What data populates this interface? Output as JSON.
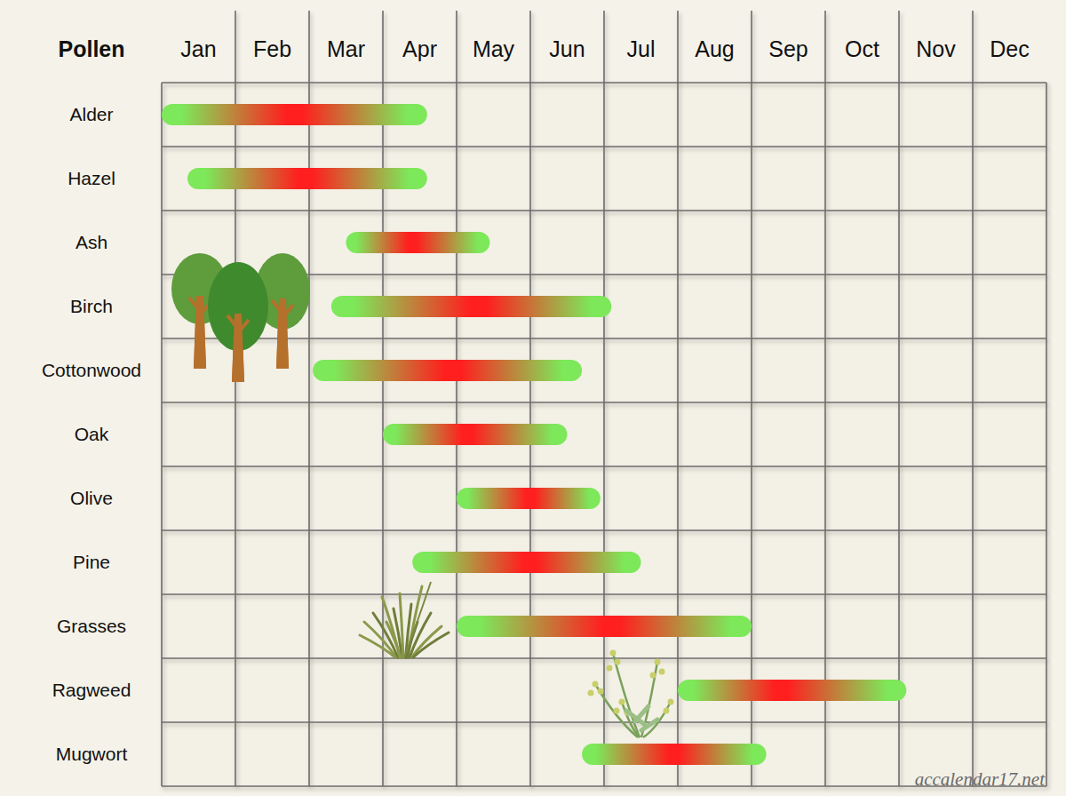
{
  "chart_data": {
    "type": "gantt",
    "orientation": "horizontal",
    "ylabel": "Pollen",
    "source": "accalendar17.net",
    "categories": [
      "Alder",
      "Hazel",
      "Ash",
      "Birch",
      "Cottonwood",
      "Oak",
      "Olive",
      "Pine",
      "Grasses",
      "Ragweed",
      "Mugwort"
    ],
    "start": [
      0,
      0.35,
      2.5,
      2.3,
      2.05,
      3.0,
      4.0,
      3.4,
      4.0,
      7.0,
      5.7
    ],
    "peak": [
      1.8,
      1.95,
      3.4,
      4.3,
      3.95,
      4.15,
      5.0,
      5.0,
      6.1,
      8.4,
      6.95
    ],
    "end": [
      3.6,
      3.6,
      4.45,
      6.1,
      5.7,
      5.5,
      5.95,
      6.5,
      8.0,
      10.1,
      8.2
    ],
    "xlim": [
      0,
      12
    ],
    "xticks": [
      {
        "value": 0.5,
        "label": "Jan"
      },
      {
        "value": 1.5,
        "label": "Feb"
      },
      {
        "value": 2.5,
        "label": "Mar"
      },
      {
        "value": 3.5,
        "label": "Apr"
      },
      {
        "value": 4.5,
        "label": "May"
      },
      {
        "value": 5.5,
        "label": "Jun"
      },
      {
        "value": 6.5,
        "label": "Jul"
      },
      {
        "value": 7.5,
        "label": "Aug"
      },
      {
        "value": 8.5,
        "label": "Sep"
      },
      {
        "value": 9.5,
        "label": "Oct"
      },
      {
        "value": 10.5,
        "label": "Nov"
      },
      {
        "value": 11.5,
        "label": "Dec"
      }
    ],
    "grid": true
  }
}
